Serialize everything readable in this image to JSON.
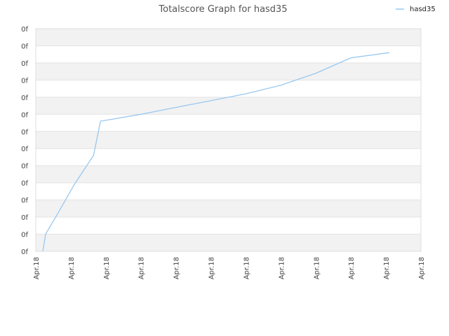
{
  "chart_data": {
    "type": "line",
    "title": "Totalscore Graph for hasd35",
    "xlabel": "",
    "ylabel": "",
    "grid": true,
    "legend_position": "top-right",
    "colors": {
      "series": "#99c8f0",
      "band": "#f2f2f2",
      "gridline": "#e3e3e3",
      "frame": "#dddddd"
    },
    "x_tick_labels": [
      "Apr.18",
      "Apr.18",
      "Apr.18",
      "Apr.18",
      "Apr.18",
      "Apr.18",
      "Apr.18",
      "Apr.18",
      "Apr.18",
      "Apr.18",
      "Apr.18",
      "Apr.18"
    ],
    "y_tick_labels": [
      "0f",
      "0f",
      "0f",
      "0f",
      "0f",
      "0f",
      "0f",
      "0f",
      "0f",
      "0f",
      "0f",
      "0f",
      "0f",
      "0f"
    ],
    "xlim": [
      0,
      11
    ],
    "ylim": [
      0,
      13
    ],
    "series": [
      {
        "name": "hasd35",
        "x": [
          0.2,
          0.28,
          0.6,
          1.1,
          1.65,
          1.85,
          3.0,
          4.5,
          6.0,
          7.0,
          8.0,
          9.0,
          10.1
        ],
        "y": [
          0.0,
          1.0,
          2.1,
          3.9,
          5.6,
          7.6,
          8.0,
          8.6,
          9.2,
          9.7,
          10.4,
          11.3,
          11.6
        ]
      }
    ]
  }
}
